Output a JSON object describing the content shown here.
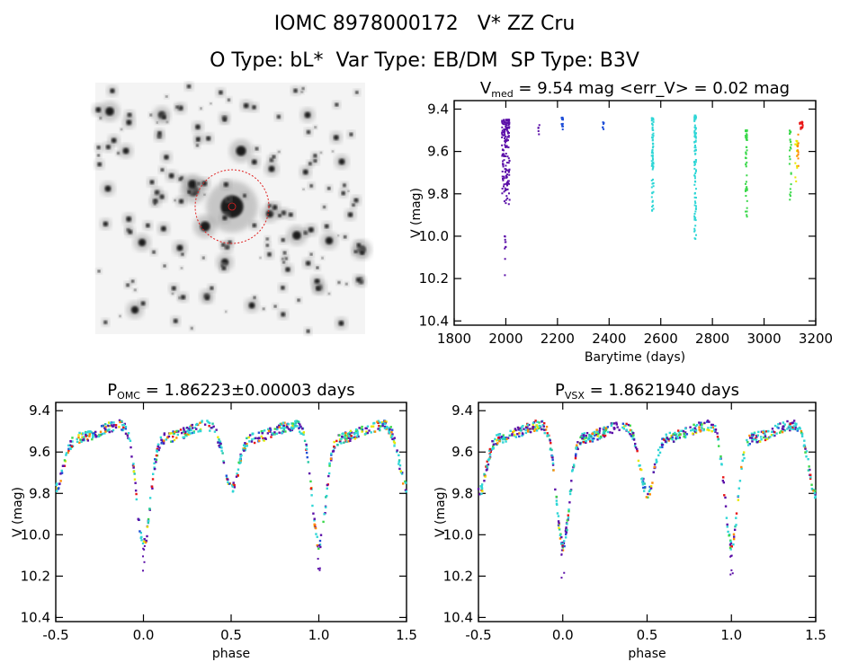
{
  "header": {
    "line1": "IOMC 8978000172   V* ZZ Cru",
    "line2": "O Type: bL*  Var Type: EB/DM  SP Type: B3V"
  },
  "colors": {
    "purple": "#5b0fa8",
    "blue": "#1f4fd8",
    "cyan": "#2fd6d6",
    "teal": "#26c7a5",
    "green": "#3ad84a",
    "yellow": "#e8e800",
    "orange": "#ff8a00",
    "red": "#e81414"
  },
  "chart_data": [
    {
      "type": "scatter",
      "panel": "light-curve",
      "title_main": "V",
      "title_sub": "med",
      "title_rest": "= 9.54 mag <err_V> = 0.02 mag",
      "xlabel": "Barytime (days)",
      "ylabel": "V (mag)",
      "xlim": [
        1800,
        3200
      ],
      "ylim": [
        10.42,
        9.36
      ],
      "y_inverted": true,
      "xticks": [
        1800,
        2000,
        2200,
        2400,
        2600,
        2800,
        3000,
        3200
      ],
      "xticklabels": [
        "1800",
        "2000",
        "2200",
        "2400",
        "2600",
        "2800",
        "3000",
        "3200"
      ],
      "yticks": [
        9.4,
        9.6,
        9.8,
        10.0,
        10.2,
        10.4
      ],
      "yticklabels": [
        "9.4",
        "9.6",
        "9.8",
        "10.0",
        "10.2",
        "10.4"
      ],
      "clusters": [
        {
          "x0": 1985,
          "x1": 2015,
          "y0": 9.45,
          "y1": 9.85,
          "color": "purple",
          "n": 160
        },
        {
          "x0": 1995,
          "x1": 2000,
          "y0": 10.0,
          "y1": 10.22,
          "color": "purple",
          "n": 10
        },
        {
          "x0": 2125,
          "x1": 2130,
          "y0": 9.46,
          "y1": 9.53,
          "color": "purple",
          "n": 5
        },
        {
          "x0": 2215,
          "x1": 2222,
          "y0": 9.44,
          "y1": 9.5,
          "color": "blue",
          "n": 14
        },
        {
          "x0": 2375,
          "x1": 2380,
          "y0": 9.46,
          "y1": 9.5,
          "color": "blue",
          "n": 6
        },
        {
          "x0": 2565,
          "x1": 2572,
          "y0": 9.44,
          "y1": 9.9,
          "color": "cyan",
          "n": 70
        },
        {
          "x0": 2730,
          "x1": 2737,
          "y0": 9.43,
          "y1": 10.05,
          "color": "cyan",
          "n": 90
        },
        {
          "x0": 2928,
          "x1": 2935,
          "y0": 9.5,
          "y1": 9.92,
          "color": "green",
          "n": 50
        },
        {
          "x0": 3098,
          "x1": 3105,
          "y0": 9.5,
          "y1": 9.83,
          "color": "green",
          "n": 25
        },
        {
          "x0": 3120,
          "x1": 3130,
          "y0": 9.55,
          "y1": 9.78,
          "color": "yellow",
          "n": 18
        },
        {
          "x0": 3128,
          "x1": 3134,
          "y0": 9.52,
          "y1": 9.7,
          "color": "orange",
          "n": 10
        },
        {
          "x0": 3138,
          "x1": 3150,
          "y0": 9.46,
          "y1": 9.5,
          "color": "red",
          "n": 20
        }
      ]
    },
    {
      "type": "scatter",
      "panel": "phase-omc",
      "title_main": "P",
      "title_sub": "OMC",
      "title_rest": "= 1.86223±0.00003 days",
      "xlabel": "phase",
      "ylabel": "V (mag)",
      "xlim": [
        -0.5,
        1.5
      ],
      "ylim": [
        10.42,
        9.36
      ],
      "y_inverted": true,
      "xticks": [
        -0.5,
        0.0,
        0.5,
        1.0,
        1.5
      ],
      "xticklabels": [
        "-0.5",
        "0.0",
        "0.5",
        "1.0",
        "1.5"
      ],
      "yticks": [
        9.4,
        9.6,
        9.8,
        10.0,
        10.2,
        10.4
      ],
      "yticklabels": [
        "9.4",
        "9.6",
        "9.8",
        "10.0",
        "10.2",
        "10.4"
      ],
      "primary_min": {
        "phase": 0.0,
        "depth": 10.05
      },
      "secondary_min": {
        "phase": 0.5,
        "depth": 9.77
      },
      "max_level": 9.5
    },
    {
      "type": "scatter",
      "panel": "phase-vsx",
      "title_main": "P",
      "title_sub": "VSX",
      "title_rest": "= 1.8621940 days",
      "xlabel": "phase",
      "ylabel": "V (mag)",
      "xlim": [
        -0.5,
        1.5
      ],
      "ylim": [
        10.42,
        9.36
      ],
      "y_inverted": true,
      "xticks": [
        -0.5,
        0.0,
        0.5,
        1.0,
        1.5
      ],
      "xticklabels": [
        "-0.5",
        "0.0",
        "0.5",
        "1.0",
        "1.5"
      ],
      "yticks": [
        9.4,
        9.6,
        9.8,
        10.0,
        10.2,
        10.4
      ],
      "yticklabels": [
        "9.4",
        "9.6",
        "9.8",
        "10.0",
        "10.2",
        "10.4"
      ],
      "primary_min": {
        "phase": 0.0,
        "depth": 10.05
      },
      "secondary_min": {
        "phase": 0.5,
        "depth": 9.8
      },
      "max_level": 9.5
    }
  ]
}
